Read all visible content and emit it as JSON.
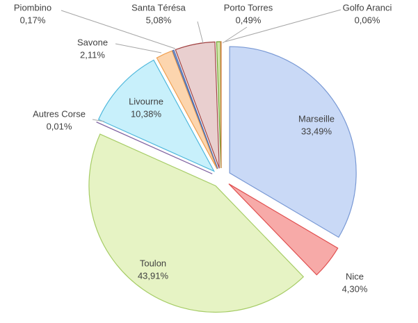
{
  "chart_data": {
    "type": "pie",
    "categories": [
      "Marseille",
      "Nice",
      "Toulon",
      "Autres Corse",
      "Livourne",
      "Savone",
      "Piombino",
      "Santa Térésa",
      "Porto Torres",
      "Golfo Aranci"
    ],
    "values": [
      33.49,
      4.3,
      43.91,
      0.01,
      10.38,
      2.11,
      0.17,
      5.08,
      0.49,
      0.06
    ],
    "value_labels": [
      "33,49%",
      "4,30%",
      "43,91%",
      "0,01%",
      "10,38%",
      "2,11%",
      "0,17%",
      "5,08%",
      "0,49%",
      "0,06%"
    ],
    "colors": [
      "#c9d9f6",
      "#f7aaa8",
      "#e6f3c4",
      "#b9a6d6",
      "#c8f0fb",
      "#fcd5ae",
      "#9db4e0",
      "#e9cfcf",
      "#cfe6a8",
      "#f6c99a"
    ],
    "strokes": [
      "#7898d4",
      "#e05050",
      "#a6cc66",
      "#8064a2",
      "#4fb8dc",
      "#f0a050",
      "#4f6fb0",
      "#a04040",
      "#70a030",
      "#d08040"
    ]
  }
}
